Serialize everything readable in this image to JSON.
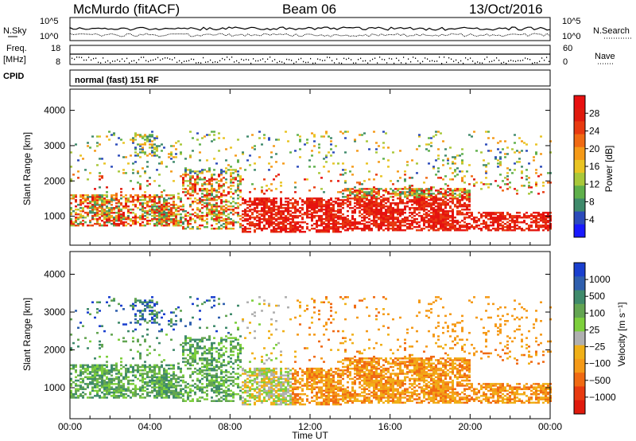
{
  "header": {
    "station": "McMurdo (fitACF)",
    "beam": "Beam 06",
    "date": "13/Oct/2016"
  },
  "top_panel": {
    "left_label": "N.Sky",
    "right_label": "N.Search",
    "left_ticks": [
      "10^5",
      "10^0"
    ],
    "right_ticks": [
      "10^5",
      "10^0"
    ]
  },
  "freq_panel": {
    "label_line1": "Freq.",
    "label_line2": "[MHz]",
    "left_ticks": [
      "18",
      "8"
    ],
    "right_label": "Nave",
    "right_ticks": [
      "60",
      "0"
    ]
  },
  "cpid_panel": {
    "label": "CPID",
    "mode": "normal (fast) 151 RF"
  },
  "chart_data": [
    {
      "type": "heatmap",
      "quantity": "Power",
      "ylabel": "Slant Range [km]",
      "xlabel": "Time UT",
      "x_ticks": [
        "00:00",
        "04:00",
        "08:00",
        "12:00",
        "16:00",
        "20:00",
        "00:00"
      ],
      "y_ticks": [
        1000,
        2000,
        3000,
        4000
      ],
      "ylim": [
        180,
        4600
      ],
      "xlim_hours": [
        0,
        24
      ],
      "colorbar": {
        "label": "Power [dB]",
        "ticks": [
          "4",
          "8",
          "12",
          "16",
          "20",
          "24",
          "28"
        ],
        "colors": [
          "#1919ff",
          "#2c4bbb",
          "#3f8a6b",
          "#5fb04b",
          "#a9c83a",
          "#e9c423",
          "#f59a18",
          "#f06a13",
          "#e83a10",
          "#e01a0d",
          "#e81010"
        ]
      }
    },
    {
      "type": "heatmap",
      "quantity": "Velocity",
      "ylabel": "Slant Range [km]",
      "xlabel": "Time UT",
      "x_ticks": [
        "00:00",
        "04:00",
        "08:00",
        "12:00",
        "16:00",
        "20:00",
        "00:00"
      ],
      "y_ticks": [
        1000,
        2000,
        3000,
        4000
      ],
      "ylim": [
        180,
        4600
      ],
      "xlim_hours": [
        0,
        24
      ],
      "colorbar": {
        "label": "Velocity [m s⁻¹]",
        "ticks": [
          "1000",
          "500",
          "100",
          "25",
          "−25",
          "−100",
          "−500",
          "−1000"
        ],
        "colors": [
          "#1a3fcf",
          "#2f5fae",
          "#3f8a6b",
          "#63a552",
          "#7dcf3c",
          "#b0b0b0",
          "#f0b018",
          "#f59a18",
          "#f06a13",
          "#e83a10",
          "#e01a0d"
        ]
      }
    }
  ]
}
